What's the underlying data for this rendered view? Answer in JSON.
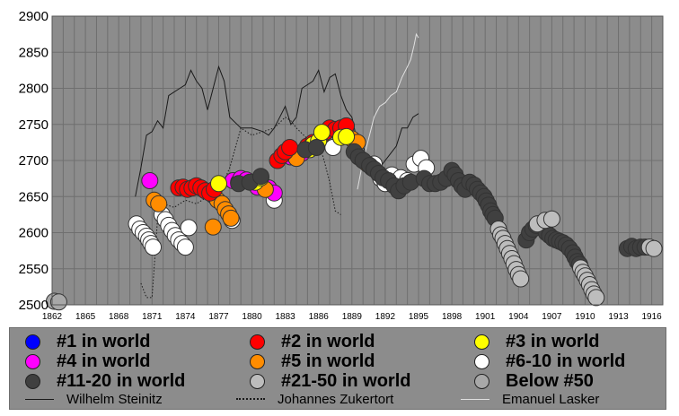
{
  "chart_data": {
    "type": "scatter",
    "title": "",
    "xlabel": "",
    "ylabel": "",
    "xlim": [
      1862,
      1917
    ],
    "ylim": [
      2500,
      2900
    ],
    "grid": true,
    "y_ticks": [
      2500,
      2550,
      2600,
      2650,
      2700,
      2750,
      2800,
      2850,
      2900
    ],
    "x_ticks": [
      1862,
      1865,
      1868,
      1871,
      1874,
      1877,
      1880,
      1883,
      1886,
      1889,
      1892,
      1895,
      1898,
      1901,
      1904,
      1907,
      1910,
      1913,
      1916
    ],
    "colors": {
      "rank1": "#0000ff",
      "rank2": "#ff0000",
      "rank3": "#ffff00",
      "rank4": "#ff00ff",
      "rank5": "#ff8c00",
      "rank6_10": "#ffffff",
      "rank11_20": "#404040",
      "rank21_50": "#bdbdbd",
      "below50": "#a8a8a8"
    },
    "legend": {
      "rank_items": [
        {
          "label": "#1 in world",
          "color": "#0000ff"
        },
        {
          "label": "#2 in world",
          "color": "#ff0000"
        },
        {
          "label": "#3 in world",
          "color": "#ffff00"
        },
        {
          "label": "#4 in world",
          "color": "#ff00ff"
        },
        {
          "label": "#5 in world",
          "color": "#ff8c00"
        },
        {
          "label": "#6-10 in world",
          "color": "#ffffff"
        },
        {
          "label": "#11-20 in world",
          "color": "#404040"
        },
        {
          "label": "#21-50 in world",
          "color": "#bdbdbd"
        },
        {
          "label": "Below #50",
          "color": "#a8a8a8"
        }
      ],
      "line_items": [
        {
          "label": "Wilhelm Steinitz",
          "style": "solid",
          "color": "#1a1a1a"
        },
        {
          "label": "Johannes Zukertort",
          "style": "dotted",
          "color": "#1a1a1a"
        },
        {
          "label": "Emanuel Lasker",
          "style": "solid",
          "color": "#e0e0e0"
        }
      ]
    },
    "lines": [
      {
        "name": "Wilhelm Steinitz",
        "style": "solid",
        "color": "#1a1a1a",
        "points": [
          [
            1869.5,
            2650
          ],
          [
            1870.0,
            2690
          ],
          [
            1870.5,
            2735
          ],
          [
            1871.0,
            2740
          ],
          [
            1871.5,
            2755
          ],
          [
            1872.0,
            2745
          ],
          [
            1872.5,
            2790
          ],
          [
            1873.5,
            2800
          ],
          [
            1874.0,
            2805
          ],
          [
            1874.5,
            2825
          ],
          [
            1875.0,
            2810
          ],
          [
            1875.5,
            2800
          ],
          [
            1876.0,
            2770
          ],
          [
            1876.5,
            2800
          ],
          [
            1877.0,
            2830
          ],
          [
            1877.5,
            2810
          ],
          [
            1878.0,
            2760
          ],
          [
            1879.0,
            2745
          ],
          [
            1880.0,
            2745
          ],
          [
            1881.0,
            2740
          ],
          [
            1881.5,
            2735
          ],
          [
            1882.0,
            2745
          ],
          [
            1882.5,
            2760
          ],
          [
            1883.0,
            2775
          ],
          [
            1883.5,
            2750
          ],
          [
            1884.0,
            2760
          ],
          [
            1884.5,
            2800
          ],
          [
            1885.0,
            2805
          ],
          [
            1885.5,
            2810
          ],
          [
            1886.0,
            2825
          ],
          [
            1886.5,
            2795
          ],
          [
            1887.0,
            2815
          ],
          [
            1887.5,
            2820
          ],
          [
            1888.0,
            2790
          ],
          [
            1888.5,
            2770
          ],
          [
            1889.0,
            2760
          ],
          [
            1889.5,
            2725
          ],
          [
            1890.0,
            2720
          ],
          [
            1890.5,
            2700
          ],
          [
            1891.0,
            2690
          ],
          [
            1891.5,
            2690
          ],
          [
            1892.0,
            2700
          ],
          [
            1892.5,
            2710
          ],
          [
            1893.0,
            2720
          ],
          [
            1893.5,
            2745
          ],
          [
            1894.0,
            2745
          ],
          [
            1894.5,
            2760
          ],
          [
            1895.0,
            2765
          ]
        ]
      },
      {
        "name": "Johannes Zukertort",
        "style": "dotted",
        "color": "#1a1a1a",
        "points": [
          [
            1870.0,
            2530
          ],
          [
            1870.5,
            2510
          ],
          [
            1871.0,
            2510
          ],
          [
            1871.5,
            2620
          ],
          [
            1872.0,
            2640
          ],
          [
            1873.0,
            2635
          ],
          [
            1874.0,
            2645
          ],
          [
            1875.0,
            2640
          ],
          [
            1876.0,
            2650
          ],
          [
            1877.0,
            2655
          ],
          [
            1878.0,
            2690
          ],
          [
            1879.0,
            2745
          ],
          [
            1880.0,
            2735
          ],
          [
            1881.0,
            2740
          ],
          [
            1882.0,
            2745
          ],
          [
            1883.0,
            2760
          ],
          [
            1883.5,
            2755
          ],
          [
            1884.0,
            2745
          ],
          [
            1885.0,
            2730
          ],
          [
            1886.0,
            2725
          ],
          [
            1886.5,
            2700
          ],
          [
            1887.0,
            2670
          ],
          [
            1887.5,
            2630
          ],
          [
            1888.0,
            2625
          ]
        ]
      },
      {
        "name": "Emanuel Lasker",
        "style": "solid",
        "color": "#e0e0e0",
        "points": [
          [
            1889.5,
            2660
          ],
          [
            1890.0,
            2700
          ],
          [
            1890.5,
            2730
          ],
          [
            1891.0,
            2760
          ],
          [
            1891.5,
            2775
          ],
          [
            1892.0,
            2780
          ],
          [
            1892.5,
            2790
          ],
          [
            1893.0,
            2795
          ],
          [
            1893.5,
            2815
          ],
          [
            1894.0,
            2830
          ],
          [
            1894.3,
            2840
          ],
          [
            1894.6,
            2860
          ],
          [
            1894.8,
            2875
          ],
          [
            1895.0,
            2870
          ]
        ]
      }
    ],
    "series": [
      {
        "name": "Below #50",
        "color": "#a8a8a8",
        "points": [
          [
            1862.2,
            2505
          ],
          [
            1862.6,
            2504
          ]
        ]
      },
      {
        "name": "#6-10 in world",
        "color": "#ffffff",
        "points": [
          [
            1869.6,
            2612
          ],
          [
            1869.9,
            2605
          ],
          [
            1870.2,
            2600
          ],
          [
            1870.5,
            2595
          ],
          [
            1870.7,
            2590
          ],
          [
            1870.9,
            2585
          ],
          [
            1871.1,
            2580
          ],
          [
            1871.9,
            2625
          ],
          [
            1872.2,
            2618
          ],
          [
            1872.5,
            2610
          ],
          [
            1872.8,
            2603
          ],
          [
            1873.1,
            2596
          ],
          [
            1873.4,
            2590
          ],
          [
            1873.7,
            2585
          ],
          [
            1874.0,
            2580
          ],
          [
            1874.3,
            2607
          ],
          [
            1878.2,
            2617
          ],
          [
            1882.0,
            2645
          ],
          [
            1887.3,
            2718
          ],
          [
            1891.0,
            2695
          ],
          [
            1891.6,
            2675
          ],
          [
            1892.0,
            2668
          ],
          [
            1892.6,
            2680
          ],
          [
            1893.4,
            2676
          ],
          [
            1894.0,
            2672
          ],
          [
            1894.6,
            2695
          ],
          [
            1895.2,
            2703
          ],
          [
            1895.7,
            2690
          ]
        ]
      },
      {
        "name": "#4 in world",
        "color": "#ff00ff",
        "points": [
          [
            1870.8,
            2672
          ],
          [
            1876.5,
            2652
          ],
          [
            1878.3,
            2672
          ],
          [
            1878.8,
            2670
          ],
          [
            1879.0,
            2675
          ],
          [
            1879.5,
            2673
          ],
          [
            1880.0,
            2670
          ],
          [
            1880.5,
            2663
          ],
          [
            1881.5,
            2662
          ],
          [
            1882.0,
            2655
          ],
          [
            1883.5,
            2705
          ],
          [
            1884.5,
            2710
          ]
        ]
      },
      {
        "name": "#5 in world",
        "color": "#ff8c00",
        "points": [
          [
            1871.2,
            2645
          ],
          [
            1871.6,
            2640
          ],
          [
            1876.5,
            2608
          ],
          [
            1876.9,
            2645
          ],
          [
            1877.3,
            2640
          ],
          [
            1877.6,
            2632
          ],
          [
            1877.9,
            2626
          ],
          [
            1878.1,
            2620
          ],
          [
            1881.2,
            2660
          ],
          [
            1884.0,
            2703
          ],
          [
            1888.5,
            2735
          ],
          [
            1889.0,
            2730
          ],
          [
            1889.5,
            2725
          ],
          [
            1890.0,
            2700
          ],
          [
            1890.4,
            2695
          ],
          [
            1890.8,
            2690
          ]
        ]
      },
      {
        "name": "#2 in world",
        "color": "#ff0000",
        "points": [
          [
            1873.4,
            2662
          ],
          [
            1873.8,
            2663
          ],
          [
            1874.2,
            2660
          ],
          [
            1874.6,
            2662
          ],
          [
            1875.0,
            2665
          ],
          [
            1875.4,
            2662
          ],
          [
            1875.8,
            2658
          ],
          [
            1876.2,
            2655
          ],
          [
            1876.6,
            2660
          ],
          [
            1882.3,
            2700
          ],
          [
            1882.7,
            2707
          ],
          [
            1883.0,
            2712
          ],
          [
            1883.4,
            2718
          ],
          [
            1885.0,
            2720
          ],
          [
            1885.5,
            2725
          ],
          [
            1886.3,
            2735
          ],
          [
            1886.7,
            2740
          ],
          [
            1887.0,
            2745
          ],
          [
            1887.5,
            2743
          ],
          [
            1888.0,
            2745
          ],
          [
            1888.5,
            2748
          ]
        ]
      },
      {
        "name": "#3 in world",
        "color": "#ffff00",
        "points": [
          [
            1877.0,
            2668
          ],
          [
            1880.3,
            2670
          ],
          [
            1880.8,
            2676
          ],
          [
            1885.2,
            2715
          ],
          [
            1885.5,
            2722
          ],
          [
            1886.0,
            2727
          ],
          [
            1886.3,
            2739
          ],
          [
            1888.0,
            2732
          ],
          [
            1888.5,
            2733
          ]
        ]
      },
      {
        "name": "#11-20 in world",
        "color": "#404040",
        "points": [
          [
            1878.8,
            2668
          ],
          [
            1879.8,
            2670
          ],
          [
            1880.8,
            2678
          ],
          [
            1884.8,
            2715
          ],
          [
            1885.8,
            2718
          ],
          [
            1889.2,
            2712
          ],
          [
            1889.6,
            2705
          ],
          [
            1890.0,
            2700
          ],
          [
            1890.6,
            2693
          ],
          [
            1891.0,
            2688
          ],
          [
            1891.4,
            2682
          ],
          [
            1891.8,
            2676
          ],
          [
            1892.3,
            2672
          ],
          [
            1892.8,
            2665
          ],
          [
            1893.2,
            2658
          ],
          [
            1893.7,
            2665
          ],
          [
            1894.3,
            2670
          ],
          [
            1895.5,
            2675
          ],
          [
            1896.0,
            2668
          ],
          [
            1896.5,
            2668
          ],
          [
            1897.0,
            2670
          ],
          [
            1897.5,
            2675
          ],
          [
            1898.0,
            2686
          ],
          [
            1898.3,
            2680
          ],
          [
            1898.6,
            2672
          ],
          [
            1898.9,
            2665
          ],
          [
            1899.2,
            2660
          ],
          [
            1899.6,
            2670
          ],
          [
            1900.0,
            2666
          ],
          [
            1900.3,
            2660
          ],
          [
            1900.6,
            2655
          ],
          [
            1900.9,
            2650
          ],
          [
            1901.1,
            2644
          ],
          [
            1901.3,
            2638
          ],
          [
            1901.5,
            2630
          ],
          [
            1901.7,
            2625
          ],
          [
            1901.9,
            2620
          ],
          [
            1904.7,
            2590
          ],
          [
            1905.0,
            2600
          ],
          [
            1905.3,
            2605
          ],
          [
            1905.6,
            2610
          ],
          [
            1905.9,
            2612
          ],
          [
            1906.2,
            2610
          ],
          [
            1906.5,
            2600
          ],
          [
            1906.8,
            2596
          ],
          [
            1907.1,
            2592
          ],
          [
            1907.4,
            2590
          ],
          [
            1907.7,
            2588
          ],
          [
            1908.0,
            2586
          ],
          [
            1908.3,
            2583
          ],
          [
            1908.6,
            2578
          ],
          [
            1908.9,
            2572
          ],
          [
            1909.1,
            2566
          ],
          [
            1909.3,
            2560
          ],
          [
            1909.5,
            2556
          ],
          [
            1913.8,
            2578
          ],
          [
            1914.2,
            2581
          ],
          [
            1914.6,
            2578
          ],
          [
            1915.0,
            2580
          ],
          [
            1915.4,
            2580
          ]
        ]
      },
      {
        "name": "#21-50 in world",
        "color": "#bdbdbd",
        "points": [
          [
            1902.2,
            2605
          ],
          [
            1902.4,
            2597
          ],
          [
            1902.6,
            2592
          ],
          [
            1902.8,
            2585
          ],
          [
            1903.0,
            2578
          ],
          [
            1903.2,
            2571
          ],
          [
            1903.4,
            2564
          ],
          [
            1903.6,
            2557
          ],
          [
            1903.8,
            2549
          ],
          [
            1904.0,
            2542
          ],
          [
            1904.2,
            2536
          ],
          [
            1905.7,
            2612
          ],
          [
            1906.4,
            2617
          ],
          [
            1907.0,
            2619
          ],
          [
            1909.6,
            2551
          ],
          [
            1909.8,
            2545
          ],
          [
            1910.0,
            2540
          ],
          [
            1910.2,
            2534
          ],
          [
            1910.4,
            2528
          ],
          [
            1910.6,
            2521
          ],
          [
            1910.8,
            2515
          ],
          [
            1911.0,
            2510
          ],
          [
            1915.8,
            2580
          ],
          [
            1916.2,
            2578
          ]
        ]
      }
    ]
  }
}
